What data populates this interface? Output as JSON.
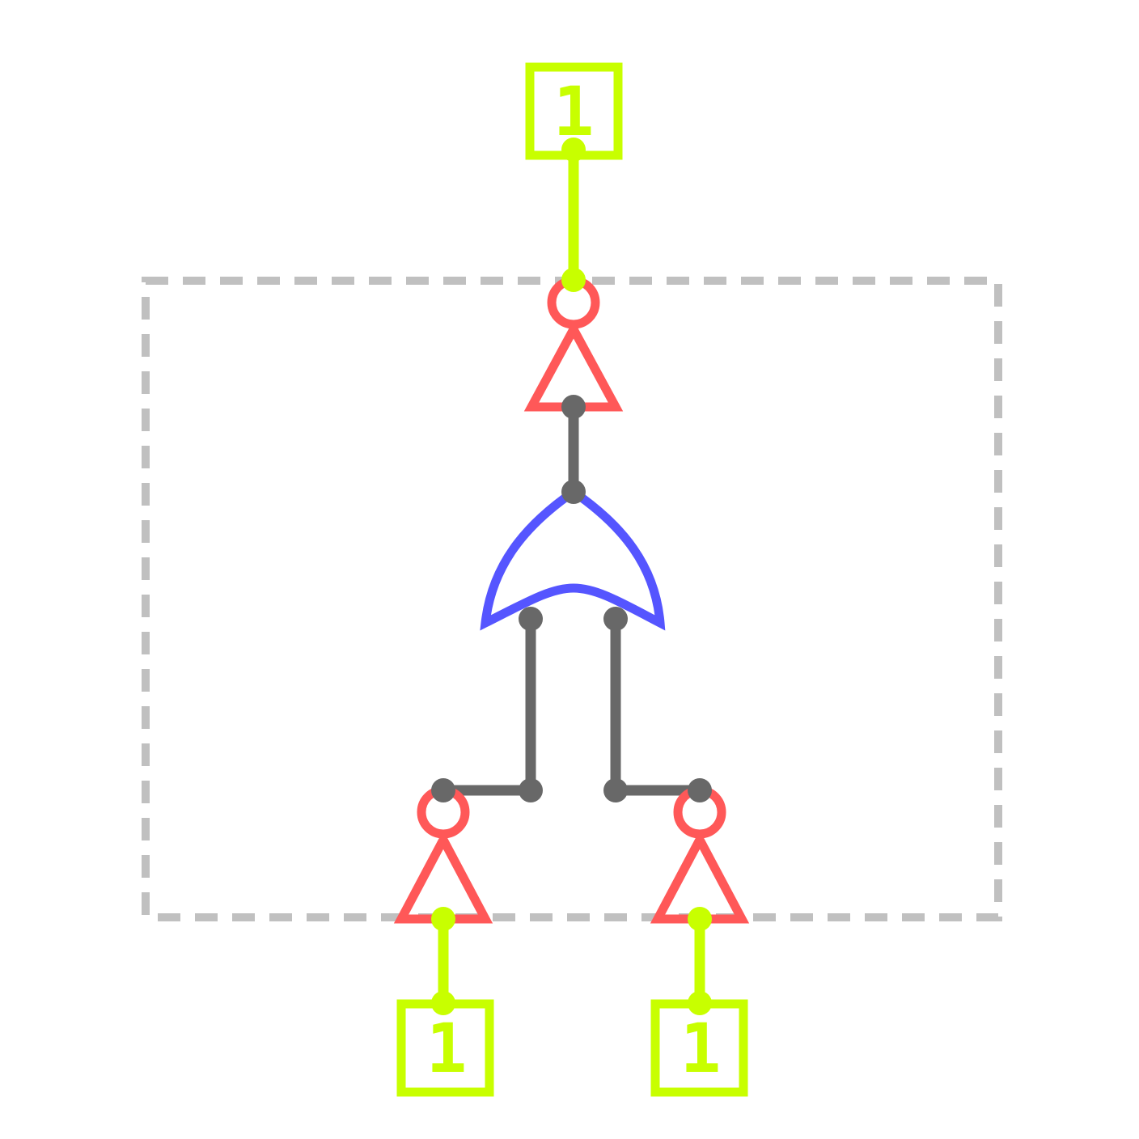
{
  "diagram": {
    "type": "logic-circuit",
    "colors": {
      "background": "#ffffff",
      "signal_high": "#c8ff00",
      "not_gate": "#ff5858",
      "or_gate": "#5555ff",
      "wire": "#686868",
      "boundary": "#c0c0c0"
    },
    "output": {
      "value": "1"
    },
    "inputs": [
      {
        "value": "1"
      },
      {
        "value": "1"
      }
    ],
    "gates": [
      "not",
      "or",
      "not",
      "not"
    ]
  }
}
